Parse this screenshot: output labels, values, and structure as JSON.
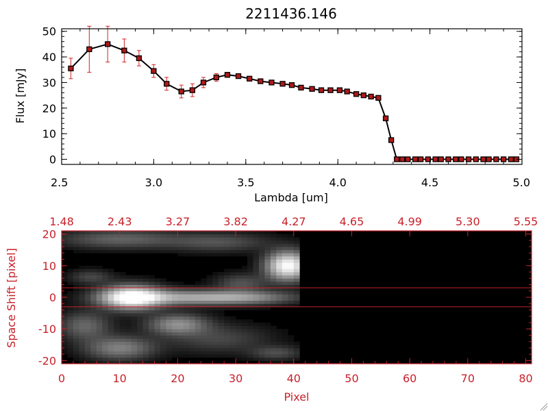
{
  "title": "2211436.146",
  "colors": {
    "spectrum_axes": "#000000",
    "image_axes": "#c8202a",
    "marker_fill": "#b01818",
    "errorbar": "#d42020",
    "image_bg": "#000000"
  },
  "chart_data": [
    {
      "type": "line",
      "title": "2211436.146",
      "xlabel": "Lambda [um]",
      "ylabel": "Flux [mJy]",
      "xlim": [
        2.5,
        5.0
      ],
      "ylim": [
        -2,
        51
      ],
      "xticks": [
        "2.5",
        "3.0",
        "3.5",
        "4.0",
        "4.5",
        "5.0"
      ],
      "yticks": [
        "0",
        "10",
        "20",
        "30",
        "40",
        "50"
      ],
      "grid": false,
      "marker": "square",
      "x": [
        2.55,
        2.65,
        2.75,
        2.84,
        2.92,
        3.0,
        3.07,
        3.15,
        3.21,
        3.27,
        3.34,
        3.4,
        3.46,
        3.52,
        3.58,
        3.64,
        3.7,
        3.75,
        3.8,
        3.86,
        3.91,
        3.96,
        4.01,
        4.05,
        4.1,
        4.14,
        4.18,
        4.22,
        4.26,
        4.29,
        4.32,
        4.35,
        4.38,
        4.42,
        4.45,
        4.49,
        4.53,
        4.56,
        4.6,
        4.64,
        4.67,
        4.71,
        4.75,
        4.79,
        4.82,
        4.86,
        4.9,
        4.94,
        4.97
      ],
      "y": [
        35.5,
        43,
        45,
        42.5,
        39.5,
        34.5,
        29.5,
        26.5,
        27,
        30,
        32,
        33,
        32.5,
        31.5,
        30.5,
        30,
        29.5,
        29,
        28,
        27.5,
        27,
        27,
        27,
        26.5,
        25.5,
        25,
        24.5,
        24,
        16,
        7.5,
        0,
        0,
        0,
        0,
        0,
        0,
        0,
        0,
        0,
        0,
        0,
        0,
        0,
        0,
        0,
        0,
        0,
        0,
        0
      ],
      "yerr": [
        4,
        9,
        7,
        4.5,
        3,
        2.5,
        2.5,
        2.5,
        2.5,
        2,
        1.5,
        1,
        0.5,
        0.5,
        0.5,
        0.5,
        0.5,
        0.5,
        0.5,
        0.5,
        0.5,
        0.5,
        0.5,
        0.5,
        0.5,
        0.5,
        0.5,
        0.5,
        0.5,
        0.5,
        0,
        0,
        0,
        0,
        0,
        0,
        0,
        0,
        0,
        0,
        0,
        0,
        0,
        0,
        0,
        0,
        0,
        0,
        0
      ]
    },
    {
      "type": "heatmap",
      "xlabel": "Pixel",
      "ylabel": "Space Shift [pixel]",
      "xlim": [
        0,
        81
      ],
      "ylim": [
        -21,
        21
      ],
      "xticks": [
        "0",
        "10",
        "20",
        "30",
        "40",
        "50",
        "60",
        "70",
        "80"
      ],
      "yticks": [
        "-20",
        "-10",
        "0",
        "10",
        "20"
      ],
      "top_xticks": [
        "1.48",
        "2.43",
        "3.27",
        "3.82",
        "4.27",
        "4.65",
        "4.99",
        "5.30",
        "5.55"
      ],
      "colormap": "grayscale",
      "data_extent_pixel": [
        0,
        41
      ],
      "aperture_lines": [
        -3,
        3
      ],
      "blobs": [
        {
          "x": 12,
          "y": 0,
          "sx": 3.5,
          "sy": 2.5,
          "amp": 1.0
        },
        {
          "x": 39,
          "y": 10,
          "sx": 2.5,
          "sy": 3.0,
          "amp": 1.0
        },
        {
          "x": 21,
          "y": 0,
          "sx": 8.0,
          "sy": 1.6,
          "amp": 0.5
        },
        {
          "x": 32,
          "y": 0,
          "sx": 6.0,
          "sy": 1.4,
          "amp": 0.35
        },
        {
          "x": 10,
          "y": 18.5,
          "sx": 7.0,
          "sy": 2.0,
          "amp": 0.28
        },
        {
          "x": 27,
          "y": 17.5,
          "sx": 6.0,
          "sy": 2.0,
          "amp": 0.22
        },
        {
          "x": 20,
          "y": -8.5,
          "sx": 3.5,
          "sy": 2.2,
          "amp": 0.45
        },
        {
          "x": 10,
          "y": -16,
          "sx": 4.0,
          "sy": 2.5,
          "amp": 0.4
        },
        {
          "x": 4,
          "y": -9,
          "sx": 3.0,
          "sy": 3.0,
          "amp": 0.3
        },
        {
          "x": 31,
          "y": 4.5,
          "sx": 3.0,
          "sy": 2.0,
          "amp": 0.22
        },
        {
          "x": 27,
          "y": -13,
          "sx": 6.0,
          "sy": 3.0,
          "amp": 0.18
        },
        {
          "x": 37,
          "y": -17.5,
          "sx": 3.0,
          "sy": 1.5,
          "amp": 0.2
        },
        {
          "x": 5,
          "y": 6.5,
          "sx": 2.5,
          "sy": 1.5,
          "amp": 0.18
        }
      ]
    }
  ]
}
